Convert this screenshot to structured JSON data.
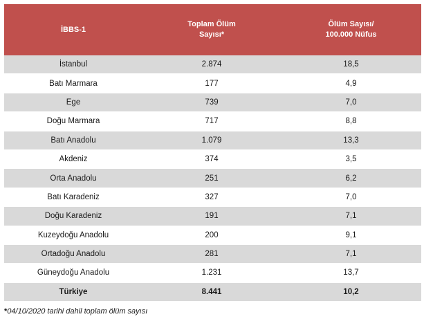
{
  "table": {
    "headers": [
      {
        "lines": [
          "İBBS-1"
        ]
      },
      {
        "lines": [
          "Toplam Ölüm",
          "Sayısı*"
        ]
      },
      {
        "lines": [
          "Ölüm Sayısı/",
          "100.000 Nüfus"
        ]
      }
    ],
    "rows": [
      {
        "region": "İstanbul",
        "deaths": "2.874",
        "rate": "18,5"
      },
      {
        "region": "Batı Marmara",
        "deaths": "177",
        "rate": "4,9"
      },
      {
        "region": "Ege",
        "deaths": "739",
        "rate": "7,0"
      },
      {
        "region": "Doğu Marmara",
        "deaths": "717",
        "rate": "8,8"
      },
      {
        "region": "Batı Anadolu",
        "deaths": "1.079",
        "rate": "13,3"
      },
      {
        "region": "Akdeniz",
        "deaths": "374",
        "rate": "3,5"
      },
      {
        "region": "Orta Anadolu",
        "deaths": "251",
        "rate": "6,2"
      },
      {
        "region": "Batı Karadeniz",
        "deaths": "327",
        "rate": "7,0"
      },
      {
        "region": "Doğu Karadeniz",
        "deaths": "191",
        "rate": "7,1"
      },
      {
        "region": "Kuzeydoğu Anadolu",
        "deaths": "200",
        "rate": "9,1"
      },
      {
        "region": "Ortadoğu Anadolu",
        "deaths": "281",
        "rate": "7,1"
      },
      {
        "region": "Güneydoğu Anadolu",
        "deaths": "1.231",
        "rate": "13,7"
      }
    ],
    "total": {
      "region": "Türkiye",
      "deaths": "8.441",
      "rate": "10,2"
    }
  },
  "footnote": {
    "star": "*",
    "text": "04/10/2020  tarihi dahil toplam ölüm sayısı"
  },
  "colors": {
    "header_bg": "#c0504d",
    "stripe": "#d9d9d9"
  }
}
